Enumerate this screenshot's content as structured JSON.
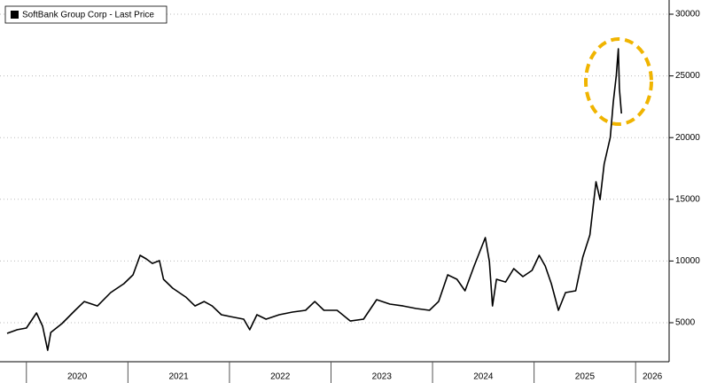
{
  "chart_data": {
    "type": "line",
    "x": [
      2019.81,
      2019.91,
      2020.0,
      2020.1,
      2020.16,
      2020.21,
      2020.24,
      2020.35,
      2020.48,
      2020.57,
      2020.7,
      2020.83,
      2020.96,
      2021.05,
      2021.12,
      2021.18,
      2021.24,
      2021.31,
      2021.35,
      2021.44,
      2021.57,
      2021.66,
      2021.75,
      2021.83,
      2021.92,
      2022.01,
      2022.14,
      2022.2,
      2022.27,
      2022.36,
      2022.49,
      2022.62,
      2022.75,
      2022.84,
      2022.93,
      2023.06,
      2023.19,
      2023.32,
      2023.45,
      2023.58,
      2023.71,
      2023.84,
      2023.97,
      2024.06,
      2024.15,
      2024.24,
      2024.32,
      2024.41,
      2024.52,
      2024.56,
      2024.59,
      2024.63,
      2024.72,
      2024.8,
      2024.89,
      2024.98,
      2025.05,
      2025.11,
      2025.17,
      2025.24,
      2025.31,
      2025.41,
      2025.48,
      2025.55,
      2025.61,
      2025.65,
      2025.69,
      2025.75,
      2025.78,
      2025.81,
      2025.83,
      2025.84,
      2025.86
    ],
    "series": [
      {
        "name": "SoftBank Group Corp - Last Price",
        "color": "#000000",
        "values": [
          4140,
          4430,
          4570,
          5790,
          4710,
          2770,
          4210,
          4930,
          6010,
          6720,
          6360,
          7440,
          8160,
          8880,
          10460,
          10170,
          9810,
          10030,
          8520,
          7800,
          7080,
          6360,
          6720,
          6360,
          5650,
          5500,
          5290,
          4430,
          5650,
          5290,
          5650,
          5860,
          6010,
          6720,
          6010,
          6010,
          5140,
          5290,
          6870,
          6510,
          6360,
          6150,
          6010,
          6720,
          8880,
          8520,
          7590,
          9600,
          11900,
          9960,
          6360,
          8520,
          8300,
          9380,
          8740,
          9240,
          10460,
          9600,
          8160,
          6010,
          7440,
          7590,
          10320,
          12110,
          16420,
          14980,
          17860,
          20010,
          22890,
          25040,
          27200,
          23970,
          21950
        ]
      }
    ],
    "xlim": [
      2019.74,
      2026.33
    ],
    "xticks": [
      {
        "value": 2020,
        "label": "2020"
      },
      {
        "value": 2021,
        "label": "2021"
      },
      {
        "value": 2022,
        "label": "2022"
      },
      {
        "value": 2023,
        "label": "2023"
      },
      {
        "value": 2024,
        "label": "2024"
      },
      {
        "value": 2025,
        "label": "2025"
      },
      {
        "value": 2026,
        "label": "2026"
      }
    ],
    "ylim": [
      1840,
      31150
    ],
    "yticks": [
      5000,
      10000,
      15000,
      20000,
      25000,
      30000
    ],
    "grid": true,
    "legend": "top-left"
  }
}
